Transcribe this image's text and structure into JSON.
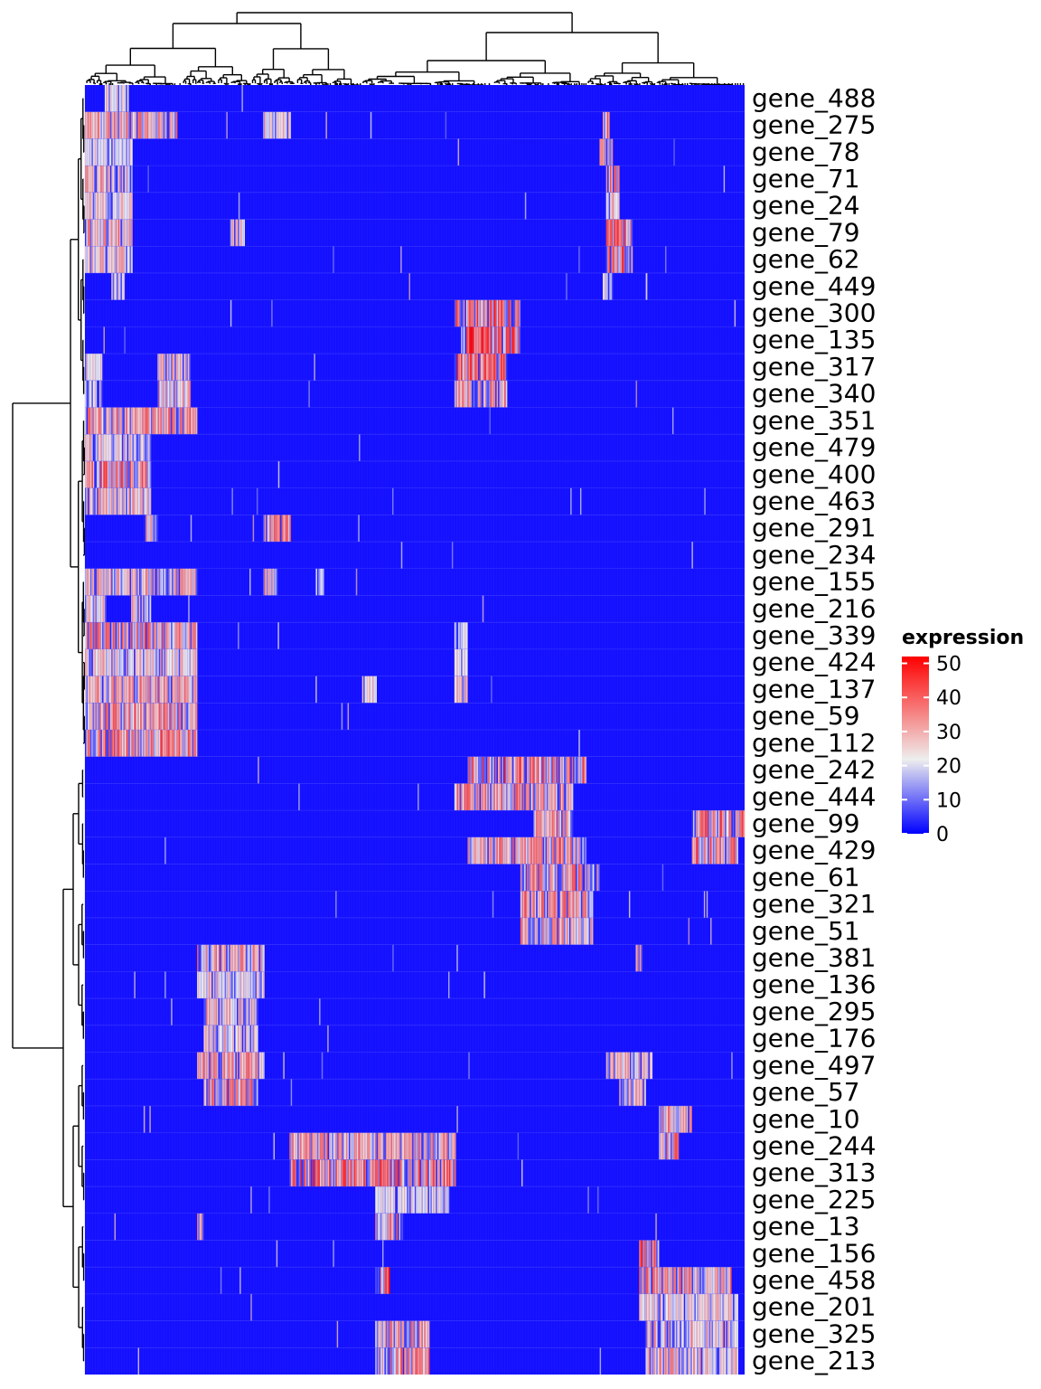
{
  "chart_data": {
    "type": "heatmap",
    "title": "",
    "xlabel": "",
    "ylabel": "",
    "row_labels": [
      "gene_488",
      "gene_275",
      "gene_78",
      "gene_71",
      "gene_24",
      "gene_79",
      "gene_62",
      "gene_449",
      "gene_300",
      "gene_135",
      "gene_317",
      "gene_340",
      "gene_351",
      "gene_479",
      "gene_400",
      "gene_463",
      "gene_291",
      "gene_234",
      "gene_155",
      "gene_216",
      "gene_339",
      "gene_424",
      "gene_137",
      "gene_59",
      "gene_112",
      "gene_242",
      "gene_444",
      "gene_99",
      "gene_429",
      "gene_61",
      "gene_321",
      "gene_51",
      "gene_381",
      "gene_136",
      "gene_295",
      "gene_176",
      "gene_497",
      "gene_57",
      "gene_10",
      "gene_244",
      "gene_313",
      "gene_225",
      "gene_13",
      "gene_156",
      "gene_458",
      "gene_201",
      "gene_325",
      "gene_213"
    ],
    "legend": {
      "title": "expression",
      "ticks": [
        0,
        10,
        20,
        30,
        40,
        50
      ],
      "colors": {
        "low": "#0000ff",
        "mid": "#eeeeee",
        "high": "#ff0000"
      },
      "range": [
        0,
        52
      ]
    },
    "row_dendrogram": true,
    "column_dendrogram": true,
    "column_count": 500,
    "blocks": [
      {
        "row": 0,
        "c0": 0.03,
        "c1": 0.065,
        "value": 24
      },
      {
        "row": 1,
        "c0": 0.0,
        "c1": 0.14,
        "value": 32
      },
      {
        "row": 1,
        "c0": 0.27,
        "c1": 0.31,
        "value": 26
      },
      {
        "row": 1,
        "c0": 0.785,
        "c1": 0.795,
        "value": 34
      },
      {
        "row": 2,
        "c0": 0.0,
        "c1": 0.07,
        "value": 22
      },
      {
        "row": 2,
        "c0": 0.78,
        "c1": 0.8,
        "value": 32
      },
      {
        "row": 3,
        "c0": 0.0,
        "c1": 0.07,
        "value": 30
      },
      {
        "row": 3,
        "c0": 0.79,
        "c1": 0.81,
        "value": 34
      },
      {
        "row": 4,
        "c0": 0.0,
        "c1": 0.07,
        "value": 26
      },
      {
        "row": 4,
        "c0": 0.79,
        "c1": 0.81,
        "value": 30
      },
      {
        "row": 5,
        "c0": 0.0,
        "c1": 0.07,
        "value": 32
      },
      {
        "row": 5,
        "c0": 0.22,
        "c1": 0.24,
        "value": 26
      },
      {
        "row": 5,
        "c0": 0.79,
        "c1": 0.83,
        "value": 38
      },
      {
        "row": 6,
        "c0": 0.0,
        "c1": 0.07,
        "value": 28
      },
      {
        "row": 6,
        "c0": 0.79,
        "c1": 0.83,
        "value": 40
      },
      {
        "row": 7,
        "c0": 0.04,
        "c1": 0.06,
        "value": 24
      },
      {
        "row": 7,
        "c0": 0.785,
        "c1": 0.8,
        "value": 22
      },
      {
        "row": 8,
        "c0": 0.56,
        "c1": 0.66,
        "value": 40
      },
      {
        "row": 9,
        "c0": 0.57,
        "c1": 0.66,
        "value": 42
      },
      {
        "row": 10,
        "c0": 0.0,
        "c1": 0.025,
        "value": 24
      },
      {
        "row": 10,
        "c0": 0.11,
        "c1": 0.16,
        "value": 30
      },
      {
        "row": 10,
        "c0": 0.56,
        "c1": 0.64,
        "value": 40
      },
      {
        "row": 11,
        "c0": 0.0,
        "c1": 0.025,
        "value": 24
      },
      {
        "row": 11,
        "c0": 0.11,
        "c1": 0.16,
        "value": 30
      },
      {
        "row": 11,
        "c0": 0.56,
        "c1": 0.64,
        "value": 34
      },
      {
        "row": 12,
        "c0": 0.0,
        "c1": 0.17,
        "value": 34
      },
      {
        "row": 13,
        "c0": 0.0,
        "c1": 0.1,
        "value": 28
      },
      {
        "row": 14,
        "c0": 0.0,
        "c1": 0.1,
        "value": 36
      },
      {
        "row": 15,
        "c0": 0.0,
        "c1": 0.1,
        "value": 30
      },
      {
        "row": 16,
        "c0": 0.09,
        "c1": 0.11,
        "value": 32
      },
      {
        "row": 16,
        "c0": 0.27,
        "c1": 0.31,
        "value": 34
      },
      {
        "row": 18,
        "c0": 0.0,
        "c1": 0.17,
        "value": 30
      },
      {
        "row": 18,
        "c0": 0.27,
        "c1": 0.29,
        "value": 36
      },
      {
        "row": 18,
        "c0": 0.35,
        "c1": 0.36,
        "value": 22
      },
      {
        "row": 19,
        "c0": 0.0,
        "c1": 0.03,
        "value": 26
      },
      {
        "row": 19,
        "c0": 0.07,
        "c1": 0.1,
        "value": 26
      },
      {
        "row": 20,
        "c0": 0.0,
        "c1": 0.17,
        "value": 34
      },
      {
        "row": 20,
        "c0": 0.56,
        "c1": 0.58,
        "value": 26
      },
      {
        "row": 21,
        "c0": 0.0,
        "c1": 0.17,
        "value": 26
      },
      {
        "row": 21,
        "c0": 0.56,
        "c1": 0.58,
        "value": 24
      },
      {
        "row": 22,
        "c0": 0.0,
        "c1": 0.17,
        "value": 32
      },
      {
        "row": 22,
        "c0": 0.42,
        "c1": 0.44,
        "value": 26
      },
      {
        "row": 22,
        "c0": 0.56,
        "c1": 0.58,
        "value": 30
      },
      {
        "row": 23,
        "c0": 0.0,
        "c1": 0.17,
        "value": 34
      },
      {
        "row": 24,
        "c0": 0.0,
        "c1": 0.17,
        "value": 36
      },
      {
        "row": 25,
        "c0": 0.58,
        "c1": 0.76,
        "value": 38
      },
      {
        "row": 26,
        "c0": 0.56,
        "c1": 0.74,
        "value": 34
      },
      {
        "row": 27,
        "c0": 0.68,
        "c1": 0.74,
        "value": 32
      },
      {
        "row": 27,
        "c0": 0.92,
        "c1": 1.0,
        "value": 36
      },
      {
        "row": 28,
        "c0": 0.58,
        "c1": 0.76,
        "value": 34
      },
      {
        "row": 28,
        "c0": 0.92,
        "c1": 0.99,
        "value": 36
      },
      {
        "row": 29,
        "c0": 0.66,
        "c1": 0.78,
        "value": 36
      },
      {
        "row": 30,
        "c0": 0.66,
        "c1": 0.77,
        "value": 34
      },
      {
        "row": 31,
        "c0": 0.66,
        "c1": 0.77,
        "value": 32
      },
      {
        "row": 32,
        "c0": 0.17,
        "c1": 0.27,
        "value": 32
      },
      {
        "row": 32,
        "c0": 0.835,
        "c1": 0.845,
        "value": 34
      },
      {
        "row": 33,
        "c0": 0.17,
        "c1": 0.27,
        "value": 26
      },
      {
        "row": 34,
        "c0": 0.18,
        "c1": 0.26,
        "value": 30
      },
      {
        "row": 35,
        "c0": 0.18,
        "c1": 0.26,
        "value": 28
      },
      {
        "row": 36,
        "c0": 0.17,
        "c1": 0.27,
        "value": 32
      },
      {
        "row": 36,
        "c0": 0.79,
        "c1": 0.86,
        "value": 30
      },
      {
        "row": 37,
        "c0": 0.18,
        "c1": 0.26,
        "value": 34
      },
      {
        "row": 37,
        "c0": 0.81,
        "c1": 0.85,
        "value": 28
      },
      {
        "row": 38,
        "c0": 0.87,
        "c1": 0.92,
        "value": 34
      },
      {
        "row": 39,
        "c0": 0.31,
        "c1": 0.56,
        "value": 32
      },
      {
        "row": 39,
        "c0": 0.87,
        "c1": 0.9,
        "value": 36
      },
      {
        "row": 40,
        "c0": 0.31,
        "c1": 0.56,
        "value": 38
      },
      {
        "row": 41,
        "c0": 0.44,
        "c1": 0.55,
        "value": 24
      },
      {
        "row": 42,
        "c0": 0.17,
        "c1": 0.18,
        "value": 36
      },
      {
        "row": 42,
        "c0": 0.44,
        "c1": 0.48,
        "value": 34
      },
      {
        "row": 43,
        "c0": 0.84,
        "c1": 0.87,
        "value": 38
      },
      {
        "row": 44,
        "c0": 0.44,
        "c1": 0.46,
        "value": 44
      },
      {
        "row": 44,
        "c0": 0.84,
        "c1": 0.98,
        "value": 34
      },
      {
        "row": 45,
        "c0": 0.84,
        "c1": 0.99,
        "value": 26
      },
      {
        "row": 46,
        "c0": 0.44,
        "c1": 0.52,
        "value": 34
      },
      {
        "row": 46,
        "c0": 0.85,
        "c1": 0.99,
        "value": 28
      },
      {
        "row": 47,
        "c0": 0.44,
        "c1": 0.52,
        "value": 34
      },
      {
        "row": 47,
        "c0": 0.85,
        "c1": 0.99,
        "value": 30
      }
    ]
  }
}
